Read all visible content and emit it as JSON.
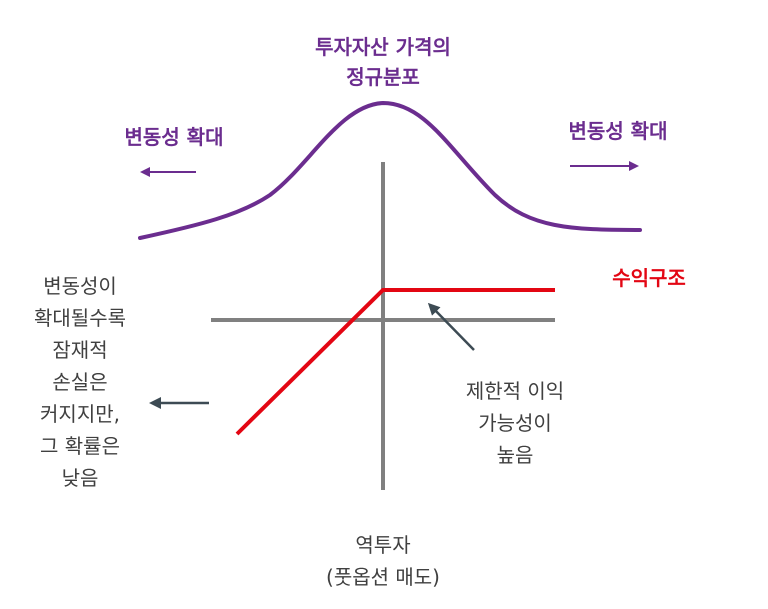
{
  "title": {
    "lines": [
      "투자자산 가격의",
      "정규분포"
    ]
  },
  "volatility_left": "변동성 확대",
  "volatility_right": "변동성 확대",
  "payoff_label": "수익구조",
  "left_note": {
    "lines": [
      "변동성이",
      "확대될수록",
      "잠재적",
      "손실은",
      "커지지만,",
      "그 확률은",
      "낮음"
    ]
  },
  "right_note": {
    "lines": [
      "제한적 이익",
      "가능성이",
      "높음"
    ]
  },
  "bottom_label": {
    "lines": [
      "역투자",
      "(풋옵션 매도)"
    ]
  },
  "colors": {
    "purple": "#6b2d8f",
    "red": "#e30613",
    "axis_gray": "#808080",
    "arrow_dark": "#3d4b54",
    "text_gray": "#404040"
  }
}
